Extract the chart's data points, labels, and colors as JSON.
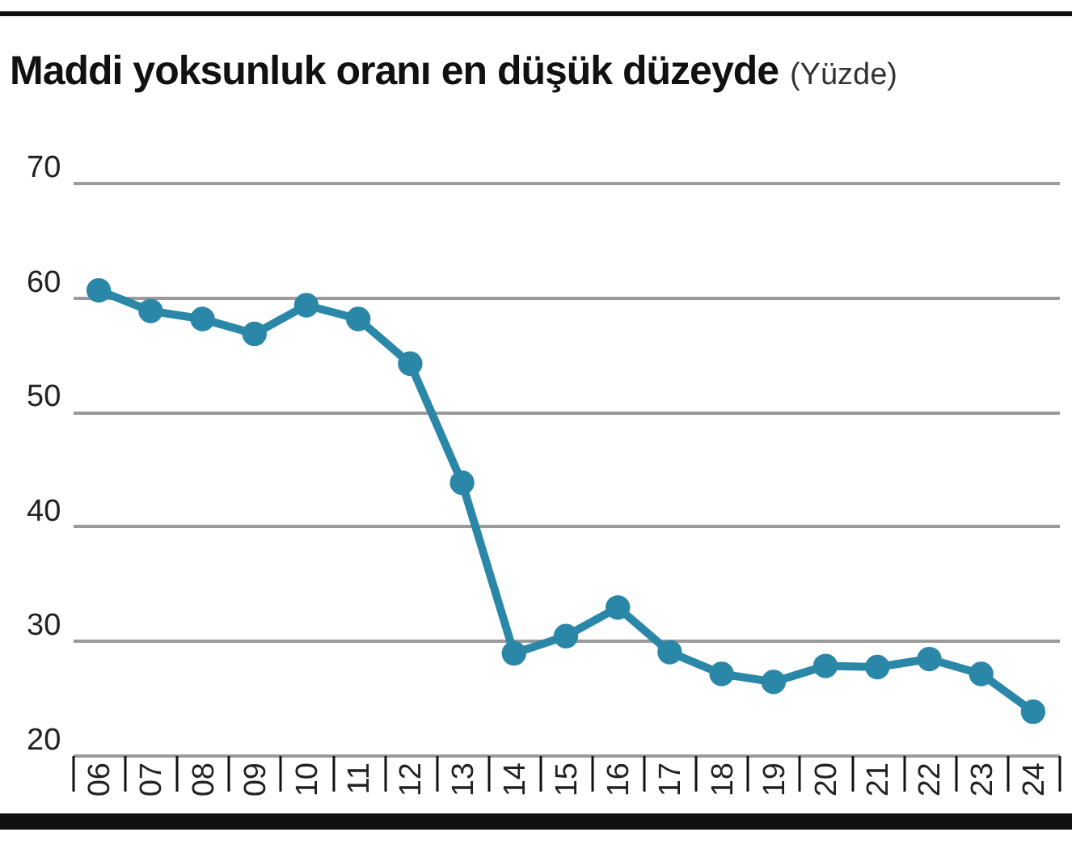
{
  "chart_data": {
    "type": "line",
    "title": "Maddi yoksunluk oranı en düşük düzeyde",
    "subtitle": "(Yüzde)",
    "categories": [
      "06",
      "07",
      "08",
      "09",
      "10",
      "11",
      "12",
      "13",
      "14",
      "15",
      "16",
      "17",
      "18",
      "19",
      "20",
      "21",
      "22",
      "23",
      "24"
    ],
    "series": [
      {
        "color": "#2b87a8",
        "values": [
          60.6,
          58.8,
          58.1,
          56.8,
          59.3,
          58.1,
          54.2,
          43.8,
          28.9,
          30.4,
          32.9,
          29.0,
          27.1,
          26.4,
          27.8,
          27.7,
          28.4,
          27.1,
          23.8
        ]
      }
    ],
    "ylim": [
      20,
      70
    ],
    "yticks": [
      20,
      30,
      40,
      50,
      60,
      70
    ],
    "grid": "y",
    "marker": "circle"
  }
}
